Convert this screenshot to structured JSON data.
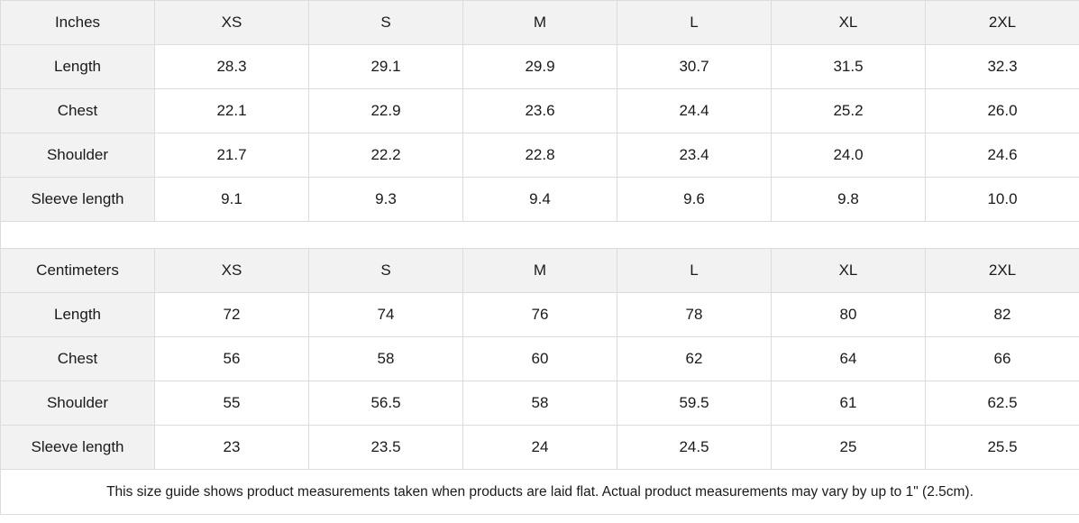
{
  "tables": [
    {
      "unit_label": "Inches",
      "sizes": [
        "XS",
        "S",
        "M",
        "L",
        "XL",
        "2XL"
      ],
      "rows": [
        {
          "label": "Length",
          "values": [
            "28.3",
            "29.1",
            "29.9",
            "30.7",
            "31.5",
            "32.3"
          ]
        },
        {
          "label": "Chest",
          "values": [
            "22.1",
            "22.9",
            "23.6",
            "24.4",
            "25.2",
            "26.0"
          ]
        },
        {
          "label": "Shoulder",
          "values": [
            "21.7",
            "22.2",
            "22.8",
            "23.4",
            "24.0",
            "24.6"
          ]
        },
        {
          "label": "Sleeve length",
          "values": [
            "9.1",
            "9.3",
            "9.4",
            "9.6",
            "9.8",
            "10.0"
          ]
        }
      ]
    },
    {
      "unit_label": "Centimeters",
      "sizes": [
        "XS",
        "S",
        "M",
        "L",
        "XL",
        "2XL"
      ],
      "rows": [
        {
          "label": "Length",
          "values": [
            "72",
            "74",
            "76",
            "78",
            "80",
            "82"
          ]
        },
        {
          "label": "Chest",
          "values": [
            "56",
            "58",
            "60",
            "62",
            "64",
            "66"
          ]
        },
        {
          "label": "Shoulder",
          "values": [
            "55",
            "56.5",
            "58",
            "59.5",
            "61",
            "62.5"
          ]
        },
        {
          "label": "Sleeve length",
          "values": [
            "23",
            "23.5",
            "24",
            "24.5",
            "25",
            "25.5"
          ]
        }
      ]
    }
  ],
  "note": "This size guide shows product measurements taken when products are laid flat.  Actual product measurements may vary by up to 1\" (2.5cm).",
  "colors": {
    "header_bg": "#f2f2f2",
    "border": "#dcdcdc"
  }
}
